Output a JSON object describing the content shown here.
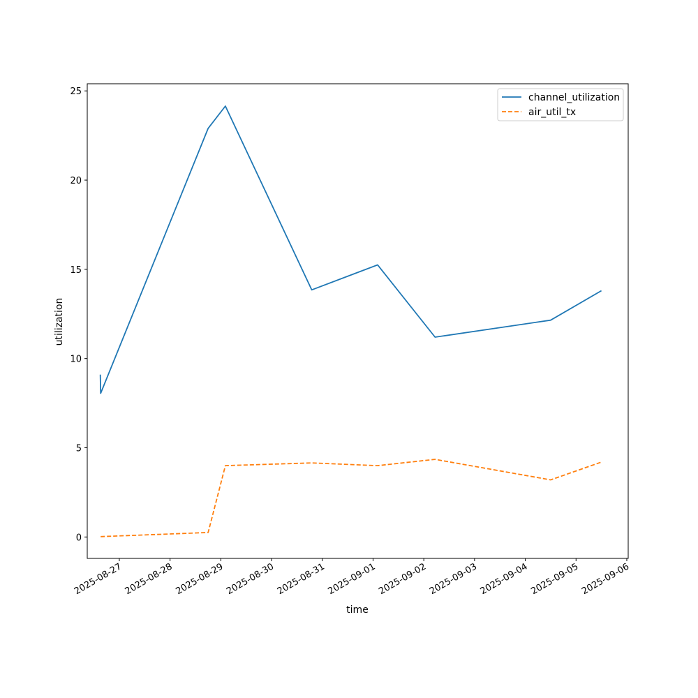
{
  "chart_data": {
    "type": "line",
    "title": "",
    "xlabel": "time",
    "ylabel": "utilization",
    "xlim": [
      "2025-08-26 08:50",
      "2025-09-06 00:40"
    ],
    "ylim": [
      -1.2,
      25.4
    ],
    "x_ticks": [
      "2025-08-27",
      "2025-08-28",
      "2025-08-29",
      "2025-08-30",
      "2025-08-31",
      "2025-09-01",
      "2025-09-02",
      "2025-09-03",
      "2025-09-04",
      "2025-09-05",
      "2025-09-06"
    ],
    "y_ticks": [
      0,
      5,
      10,
      15,
      20,
      25
    ],
    "grid": false,
    "legend_position": "top-right",
    "series": [
      {
        "name": "channel_utilization",
        "color": "#1f77b4",
        "line_style": "solid",
        "x": [
          "2025-08-26 15:00",
          "2025-08-26 15:10",
          "2025-08-28 18:00",
          "2025-08-29 02:10",
          "2025-08-30 19:00",
          "2025-09-01 02:10",
          "2025-09-02 05:20",
          "2025-09-04 12:00",
          "2025-09-05 12:00"
        ],
        "y": [
          9.1,
          8.05,
          22.9,
          24.15,
          13.85,
          15.25,
          11.2,
          12.15,
          13.8
        ]
      },
      {
        "name": "air_util_tx",
        "color": "#ff7f0e",
        "line_style": "dashed",
        "x": [
          "2025-08-26 15:10",
          "2025-08-28 18:00",
          "2025-08-29 02:10",
          "2025-08-30 19:00",
          "2025-09-01 02:10",
          "2025-09-02 05:20",
          "2025-09-04 12:00",
          "2025-09-05 12:00"
        ],
        "y": [
          0.02,
          0.25,
          4.0,
          4.15,
          4.0,
          4.35,
          3.2,
          4.2
        ]
      }
    ]
  }
}
